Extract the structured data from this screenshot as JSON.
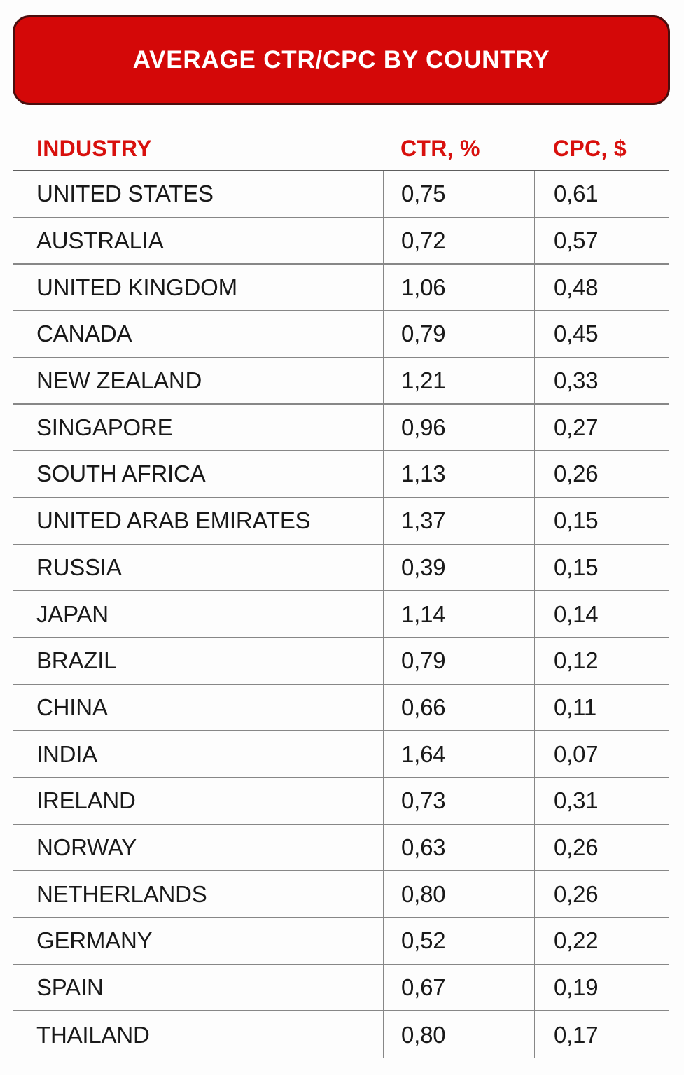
{
  "banner": {
    "title": "AVERAGE CTR/CPC BY COUNTRY"
  },
  "table": {
    "headers": {
      "industry": "INDUSTRY",
      "ctr": "CTR, %",
      "cpc": "CPC, $"
    },
    "rows": [
      {
        "country": "UNITED STATES",
        "ctr": "0,75",
        "cpc": "0,61"
      },
      {
        "country": "AUSTRALIA",
        "ctr": "0,72",
        "cpc": "0,57"
      },
      {
        "country": "UNITED KINGDOM",
        "ctr": "1,06",
        "cpc": "0,48"
      },
      {
        "country": "CANADA",
        "ctr": "0,79",
        "cpc": "0,45"
      },
      {
        "country": "NEW ZEALAND",
        "ctr": "1,21",
        "cpc": "0,33"
      },
      {
        "country": "SINGAPORE",
        "ctr": "0,96",
        "cpc": "0,27"
      },
      {
        "country": "SOUTH AFRICA",
        "ctr": "1,13",
        "cpc": "0,26"
      },
      {
        "country": "UNITED ARAB EMIRATES",
        "ctr": "1,37",
        "cpc": "0,15"
      },
      {
        "country": "RUSSIA",
        "ctr": "0,39",
        "cpc": "0,15"
      },
      {
        "country": "JAPAN",
        "ctr": "1,14",
        "cpc": "0,14"
      },
      {
        "country": "BRAZIL",
        "ctr": "0,79",
        "cpc": "0,12"
      },
      {
        "country": "CHINA",
        "ctr": "0,66",
        "cpc": "0,11"
      },
      {
        "country": "INDIA",
        "ctr": "1,64",
        "cpc": "0,07"
      },
      {
        "country": "IRELAND",
        "ctr": "0,73",
        "cpc": "0,31"
      },
      {
        "country": "NORWAY",
        "ctr": "0,63",
        "cpc": "0,26"
      },
      {
        "country": "NETHERLANDS",
        "ctr": "0,80",
        "cpc": "0,26"
      },
      {
        "country": "GERMANY",
        "ctr": "0,52",
        "cpc": "0,22"
      },
      {
        "country": "SPAIN",
        "ctr": "0,67",
        "cpc": "0,19"
      },
      {
        "country": "THAILAND",
        "ctr": "0,80",
        "cpc": "0,17"
      }
    ]
  },
  "colors": {
    "banner_fill": "#d40808",
    "banner_border": "#4a0e0e",
    "header_text": "#d8100d",
    "grid_line": "#878787",
    "header_line": "#5e5e5e",
    "data_text": "#191919",
    "background": "#fdfdfd"
  },
  "chart_data": {
    "type": "table",
    "title": "AVERAGE CTR/CPC BY COUNTRY",
    "columns": [
      "INDUSTRY",
      "CTR, %",
      "CPC, $"
    ],
    "decimal_separator": ",",
    "rows": [
      [
        "UNITED STATES",
        0.75,
        0.61
      ],
      [
        "AUSTRALIA",
        0.72,
        0.57
      ],
      [
        "UNITED KINGDOM",
        1.06,
        0.48
      ],
      [
        "CANADA",
        0.79,
        0.45
      ],
      [
        "NEW ZEALAND",
        1.21,
        0.33
      ],
      [
        "SINGAPORE",
        0.96,
        0.27
      ],
      [
        "SOUTH AFRICA",
        1.13,
        0.26
      ],
      [
        "UNITED ARAB EMIRATES",
        1.37,
        0.15
      ],
      [
        "RUSSIA",
        0.39,
        0.15
      ],
      [
        "JAPAN",
        1.14,
        0.14
      ],
      [
        "BRAZIL",
        0.79,
        0.12
      ],
      [
        "CHINA",
        0.66,
        0.11
      ],
      [
        "INDIA",
        1.64,
        0.07
      ],
      [
        "IRELAND",
        0.73,
        0.31
      ],
      [
        "NORWAY",
        0.63,
        0.26
      ],
      [
        "NETHERLANDS",
        0.8,
        0.26
      ],
      [
        "GERMANY",
        0.52,
        0.22
      ],
      [
        "SPAIN",
        0.67,
        0.19
      ],
      [
        "THAILAND",
        0.8,
        0.17
      ]
    ]
  }
}
